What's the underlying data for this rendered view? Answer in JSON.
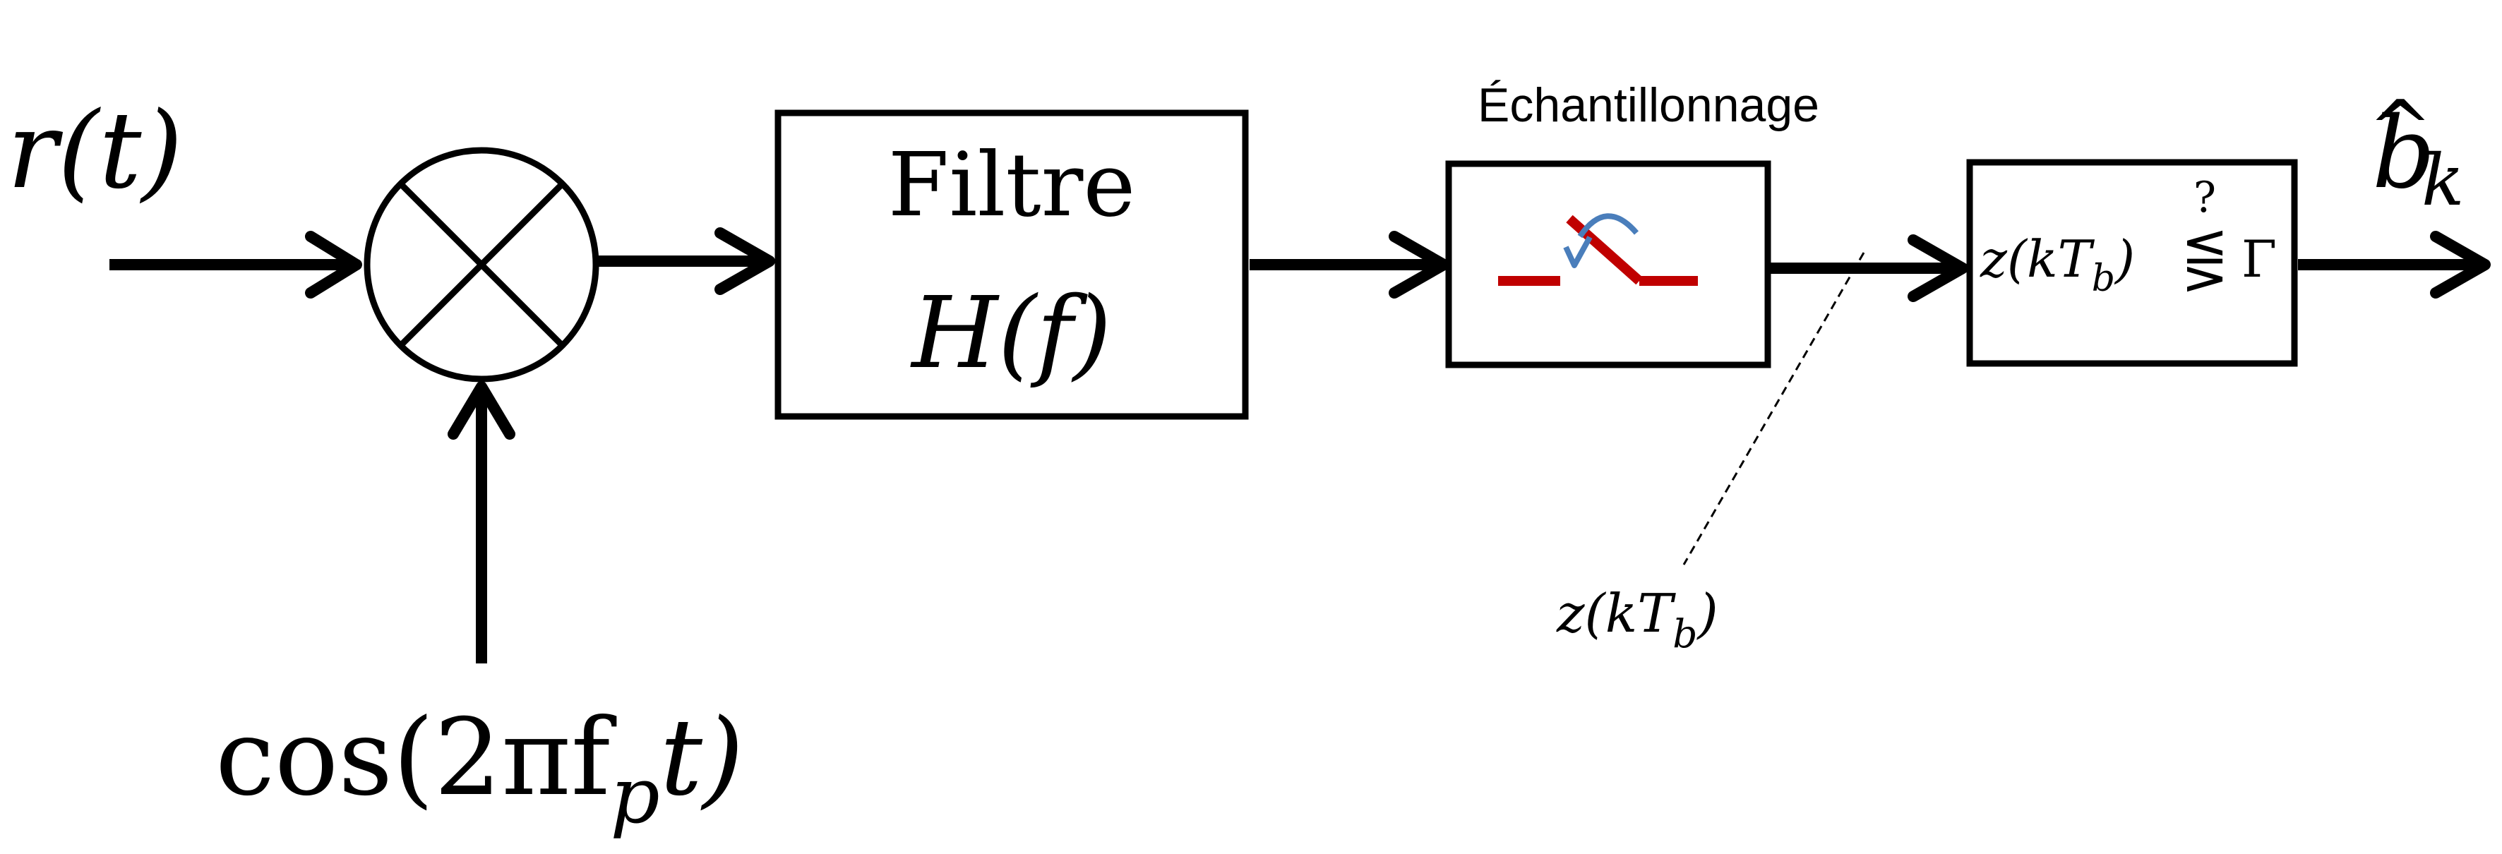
{
  "input": {
    "signal": "r(t)"
  },
  "carrier": {
    "expression": "cos(2πf",
    "sub": "p",
    "tail": "t)"
  },
  "filter": {
    "title": "Filtre",
    "transfer": "H(f)"
  },
  "sampling": {
    "title": "Échantillonnage"
  },
  "sample_label": {
    "prefix": "z(kT",
    "sub": "b",
    "suffix": ")"
  },
  "decision": {
    "prefix": "z(kT",
    "sub": "b",
    "suffix": ")",
    "operator": "⋚",
    "question": "?",
    "threshold": "Γ"
  },
  "output": {
    "hat": "^",
    "base": "b",
    "sub": "k"
  },
  "colors": {
    "line": "#000000",
    "switch": "#c00000",
    "switch_arc": "#4a7ebb"
  },
  "icons": {
    "mixer": "multiplier-circle-icon",
    "switch": "sampling-switch-icon"
  }
}
